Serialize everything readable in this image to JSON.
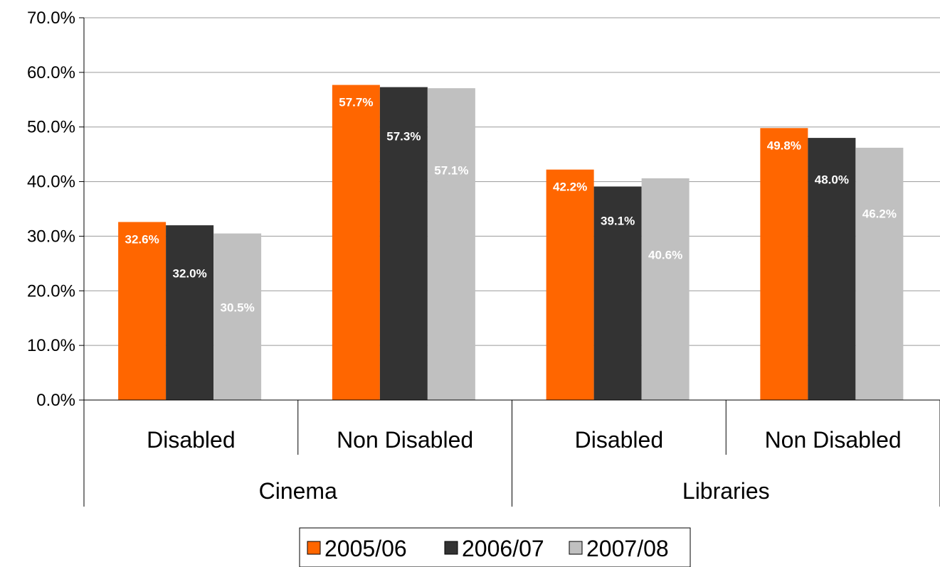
{
  "chart_data": {
    "type": "bar",
    "groups": [
      {
        "label": "Cinema",
        "categories": [
          "Disabled",
          "Non Disabled"
        ]
      },
      {
        "label": "Libraries",
        "categories": [
          "Disabled",
          "Non Disabled"
        ]
      }
    ],
    "categories": [
      "Disabled",
      "Non Disabled",
      "Disabled",
      "Non Disabled"
    ],
    "series": [
      {
        "name": "2005/06",
        "color": "#ff6600",
        "values": [
          32.6,
          57.7,
          42.2,
          49.8
        ],
        "labels": [
          "32.6%",
          "57.7%",
          "42.2%",
          "49.8%"
        ]
      },
      {
        "name": "2006/07",
        "color": "#333333",
        "values": [
          32.0,
          57.3,
          39.1,
          48.0
        ],
        "labels": [
          "32.0%",
          "57.3%",
          "39.1%",
          "48.0%"
        ]
      },
      {
        "name": "2007/08",
        "color": "#c0c0c0",
        "values": [
          30.5,
          57.1,
          40.6,
          46.2
        ],
        "labels": [
          "30.5%",
          "57.1%",
          "40.6%",
          "46.2%"
        ]
      }
    ],
    "yticks": [
      "0.0%",
      "10.0%",
      "20.0%",
      "30.0%",
      "40.0%",
      "50.0%",
      "60.0%",
      "70.0%"
    ],
    "ylim": [
      0,
      70
    ],
    "grid": true,
    "legend": "bottom"
  }
}
